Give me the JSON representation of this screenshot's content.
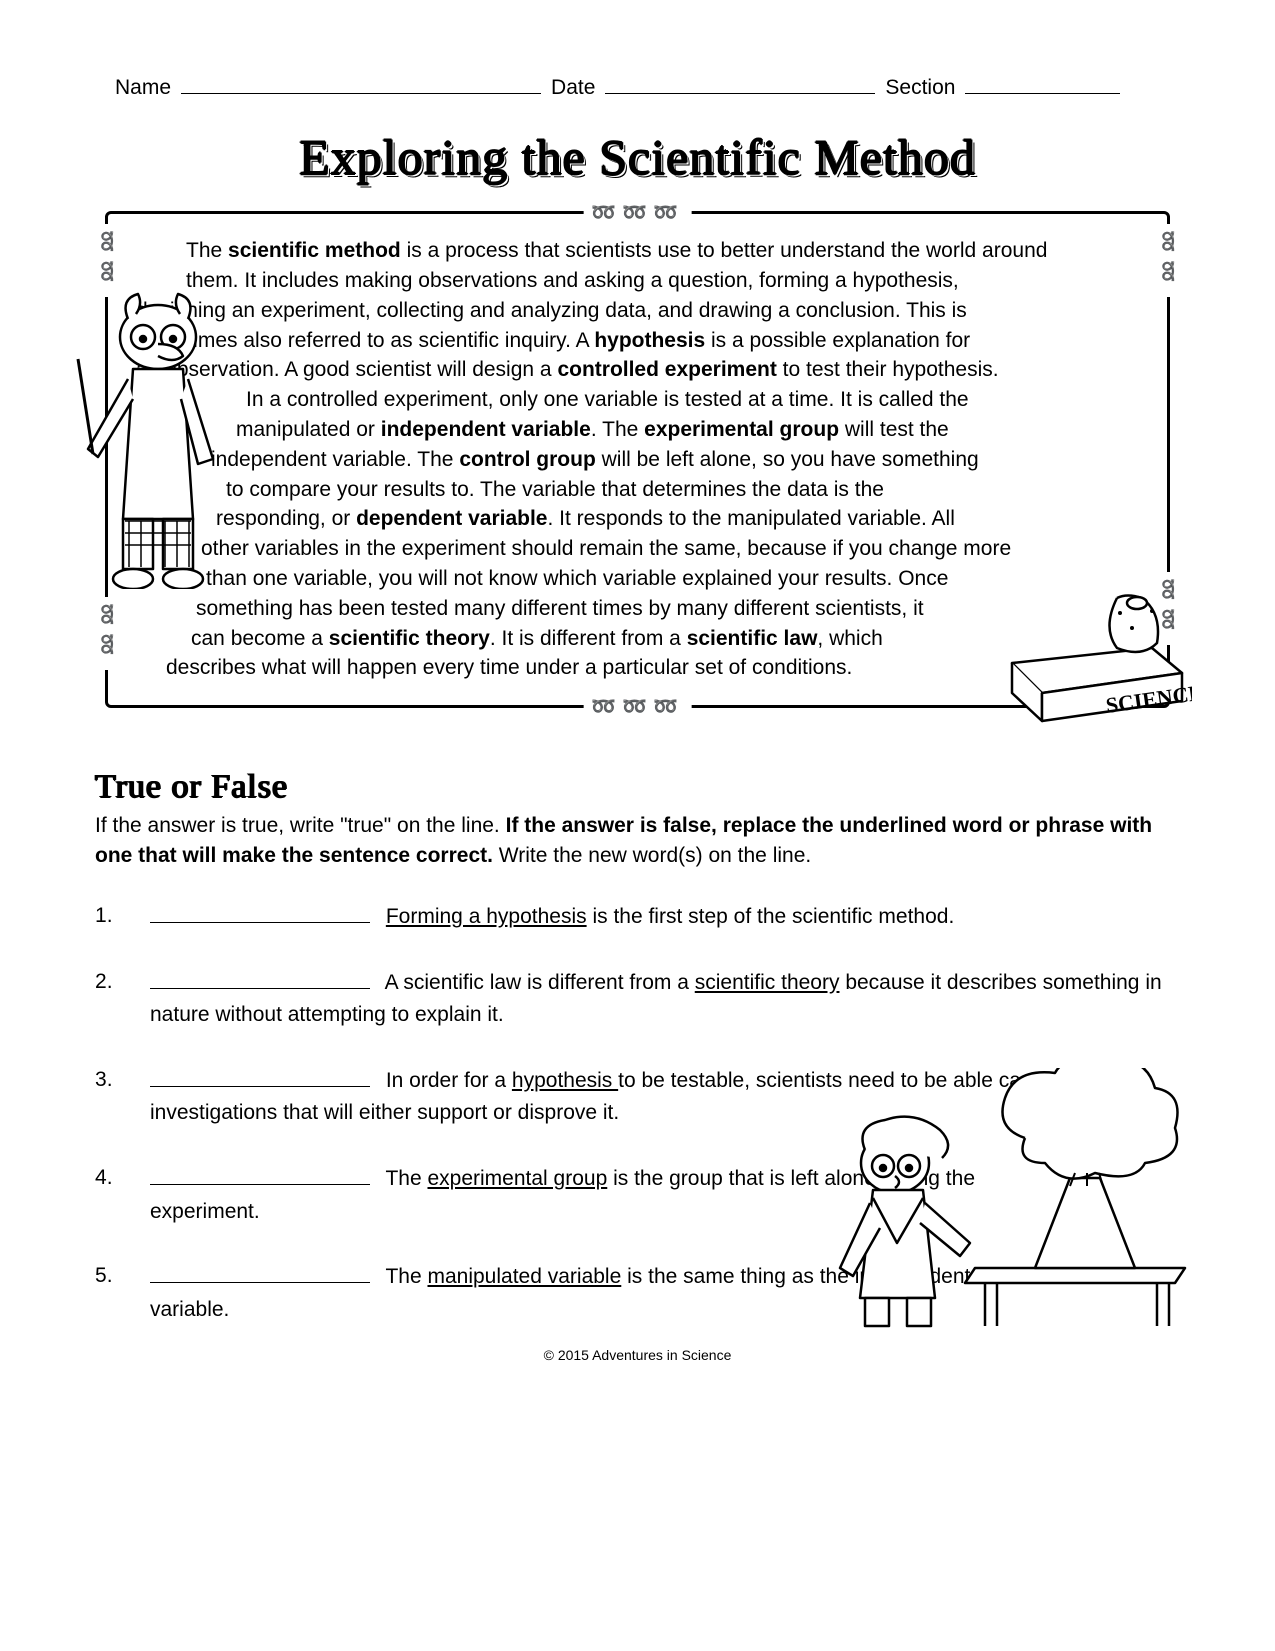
{
  "header": {
    "name_label": "Name",
    "date_label": "Date",
    "section_label": "Section"
  },
  "title": "Exploring the Scientific Method",
  "intro": {
    "html": "The <b>scientific method</b> is a process that scientists use to better understand the world around them.  It includes making observations and asking a question, forming a hypothesis, designing an experiment, collecting and analyzing data, and drawing a conclusion.  This is sometimes also referred to as scientific inquiry.  A <b>hypothesis</b> is a possible explanation for an observation.  A good scientist will design a <b>controlled experiment</b> to test their hypothesis.  In a controlled experiment, only one variable is tested at a time.  It is called the manipulated or <b>independent variable</b>.  The <b>experimental group</b> will test the independent variable.  The <b>control group</b> will be left alone, so you have something to compare your results to.  The variable that determines the data is the responding, or <b>dependent variable</b>.  It responds to the manipulated variable.  All other variables in the experiment should remain the same, because if you change more than one variable, you will not know which variable explained your results.  Once something has been tested many different times by many different scientists, it can become a <b>scientific theory</b>.  It is different from a <b>scientific law</b>, which describes what will happen every time under a particular set of conditions."
  },
  "tf": {
    "heading": "True or False",
    "instructions_html": "If the answer is true, write \"true\" on the line.  <b>If the answer is false, replace the underlined word or phrase with one that will make the sentence correct.</b>  Write the new word(s) on the line.",
    "items": [
      "<span class=\"u\">Forming a hypothesis</span> is the first step of the scientific method.",
      "A scientific law is different from a <span class=\"u\">scientific theory</span> because it describes something in nature without attempting to explain it.",
      "In order for a <span class=\"u\">hypothesis </span>to be testable, scientists need to be able carry out investigations that will either support or disprove it.",
      "The <span class=\"u\">experimental group</span> is the group that is left alone during the experiment.",
      "The <span class=\"u\">manipulated variable</span> is the same thing as the independent variable."
    ]
  },
  "footer": "© 2015 Adventures in Science",
  "decor": {
    "curl_glyph_top": "➿➿➿",
    "curl_glyph_bottom": "➿➿➿",
    "curl_side": "➿➿",
    "book_label": "SCIENCE"
  }
}
